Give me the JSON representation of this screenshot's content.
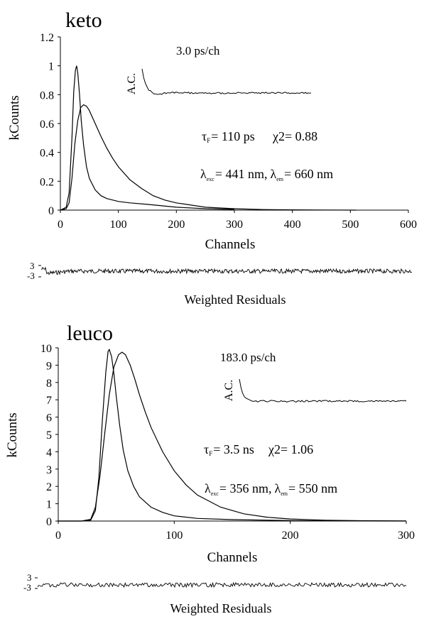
{
  "chart_data": [
    {
      "type": "line",
      "panel_title": "keto",
      "channel_width": "3.0 ps/ch",
      "xlabel": "Channels",
      "ylabel": "kCounts",
      "xlim": [
        0,
        600
      ],
      "ylim": [
        0,
        1.2
      ],
      "x_ticks": [
        "0",
        "100",
        "200",
        "300",
        "400",
        "500",
        "600"
      ],
      "y_ticks": [
        "0",
        "0.2",
        "0.4",
        "0.6",
        "0.8",
        "1",
        "1.2"
      ],
      "grid": false,
      "annotations": {
        "tau_symbol": "τ",
        "tau_sub": "F",
        "tau_value": "= 110 ps",
        "chi_label": "χ2= 0.88",
        "lambda_symbol": "λ",
        "exc_sub": "exc",
        "exc_value": "= 441 nm,",
        "em_sub": "em",
        "em_value": "= 660 nm"
      },
      "inset": {
        "label": "A.C.",
        "x": [
          0,
          1,
          2,
          3,
          4,
          6,
          8,
          10,
          15,
          20,
          30,
          40,
          60,
          80,
          100
        ],
        "y": [
          1.0,
          0.62,
          0.4,
          0.25,
          0.12,
          0.02,
          -0.05,
          -0.04,
          0.0,
          0.01,
          0.0,
          0.0,
          0.0,
          0.0,
          0.0
        ]
      },
      "residuals": {
        "label": "Weighted Residuals",
        "y_ticks": [
          "3",
          "-3"
        ]
      },
      "series": [
        {
          "x": [
            0,
            10,
            15,
            20,
            23,
            26,
            28,
            30,
            33,
            36,
            40,
            45,
            50,
            60,
            70,
            80,
            100,
            120,
            150,
            200,
            250,
            300
          ],
          "y": [
            0,
            0.02,
            0.12,
            0.5,
            0.82,
            0.97,
            1.0,
            0.95,
            0.8,
            0.62,
            0.45,
            0.3,
            0.22,
            0.14,
            0.1,
            0.08,
            0.06,
            0.05,
            0.04,
            0.02,
            0.01,
            0.005
          ]
        },
        {
          "x": [
            0,
            10,
            15,
            20,
            25,
            30,
            35,
            40,
            45,
            50,
            60,
            70,
            80,
            90,
            100,
            120,
            140,
            160,
            180,
            200,
            250,
            300,
            350,
            400,
            450,
            510
          ],
          "y": [
            0,
            0.01,
            0.05,
            0.22,
            0.46,
            0.62,
            0.71,
            0.73,
            0.72,
            0.69,
            0.6,
            0.51,
            0.43,
            0.36,
            0.3,
            0.21,
            0.15,
            0.1,
            0.07,
            0.05,
            0.02,
            0.01,
            0.004,
            0.002,
            0.001,
            0
          ]
        }
      ]
    },
    {
      "type": "line",
      "panel_title": "leuco",
      "channel_width": "183.0 ps/ch",
      "xlabel": "Channels",
      "ylabel": "kCounts",
      "xlim": [
        0,
        300
      ],
      "ylim": [
        0,
        10
      ],
      "x_ticks": [
        "0",
        "100",
        "200",
        "300"
      ],
      "y_ticks": [
        "0",
        "1",
        "2",
        "3",
        "4",
        "5",
        "6",
        "7",
        "8",
        "9",
        "10"
      ],
      "grid": false,
      "annotations": {
        "tau_symbol": "τ",
        "tau_sub": "F",
        "tau_value": "= 3.5 ns",
        "chi_label": "χ2= 1.06",
        "lambda_symbol": "λ",
        "exc_sub": "exc",
        "exc_value": "= 356 nm,",
        "em_sub": "em",
        "em_value": "= 550 nm"
      },
      "inset": {
        "label": "A.C.",
        "x": [
          0,
          1,
          2,
          3,
          4,
          6,
          8,
          10,
          15,
          20,
          30,
          40,
          60,
          80,
          100
        ],
        "y": [
          1.0,
          0.6,
          0.35,
          0.2,
          0.1,
          0.03,
          0.0,
          -0.02,
          0.0,
          0.0,
          -0.02,
          0.0,
          0.0,
          0.0,
          0.0
        ]
      },
      "residuals": {
        "label": "Weighted Residuals",
        "y_ticks": [
          "3",
          "-3"
        ]
      },
      "series": [
        {
          "x": [
            0,
            20,
            28,
            32,
            35,
            38,
            41,
            43,
            44,
            46,
            48,
            50,
            53,
            56,
            60,
            65,
            70,
            80,
            90,
            100,
            120,
            150,
            200,
            250,
            300
          ],
          "y": [
            0,
            0,
            0.05,
            0.6,
            2.5,
            5.8,
            8.6,
            9.8,
            9.9,
            9.5,
            8.5,
            7.2,
            5.5,
            4.1,
            2.9,
            2.0,
            1.4,
            0.8,
            0.5,
            0.3,
            0.15,
            0.08,
            0.03,
            0.01,
            0
          ]
        },
        {
          "x": [
            0,
            20,
            28,
            32,
            36,
            40,
            44,
            48,
            52,
            55,
            58,
            62,
            66,
            70,
            75,
            80,
            90,
            100,
            110,
            120,
            140,
            160,
            180,
            200,
            230,
            260,
            300
          ],
          "y": [
            0,
            0,
            0.1,
            0.8,
            2.6,
            5.0,
            7.3,
            8.9,
            9.6,
            9.75,
            9.6,
            9.0,
            8.2,
            7.3,
            6.3,
            5.4,
            4.0,
            2.9,
            2.1,
            1.5,
            0.8,
            0.42,
            0.22,
            0.12,
            0.05,
            0.02,
            0.005
          ]
        }
      ]
    }
  ]
}
